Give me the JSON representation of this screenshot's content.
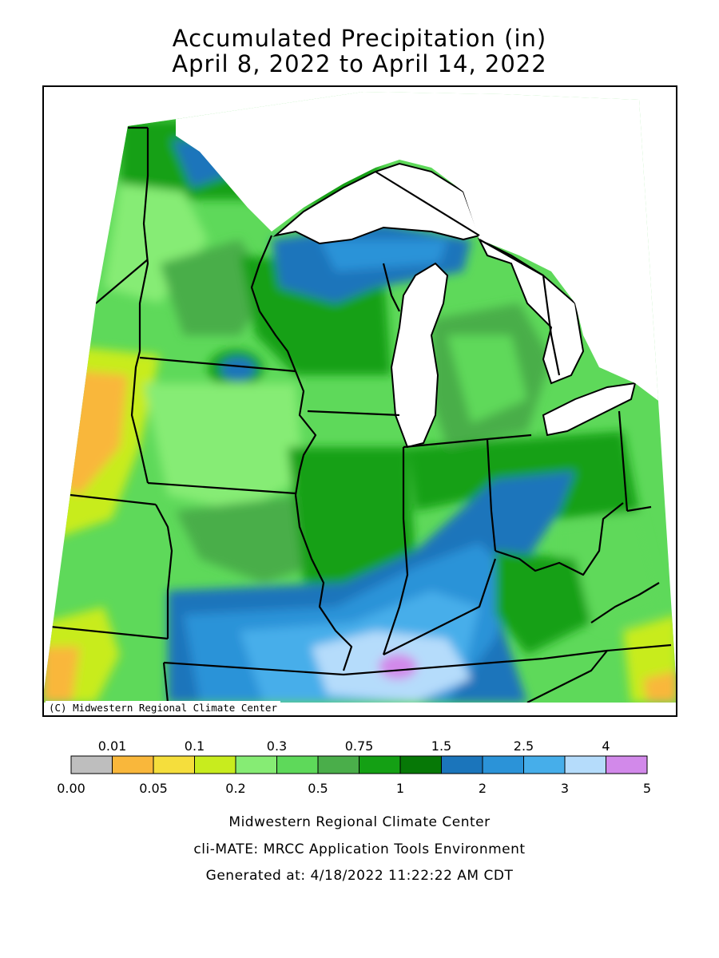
{
  "title_line1": "Accumulated Precipitation (in)",
  "title_line2": "April 8, 2022 to April 14, 2022",
  "credit": "(C) Midwestern Regional Climate Center",
  "legend": {
    "top_labels": [
      "0.01",
      "0.1",
      "0.3",
      "0.75",
      "1.5",
      "2.5",
      "4"
    ],
    "bottom_labels": [
      "0.00",
      "0.05",
      "0.2",
      "0.5",
      "1",
      "2",
      "3",
      "5"
    ],
    "colors": [
      "#bebebe",
      "#f9b73b",
      "#f5de3c",
      "#c8ec1e",
      "#86ec74",
      "#5ed95a",
      "#4aae4a",
      "#14a014",
      "#067806",
      "#1b75bb",
      "#2b93d8",
      "#46aeea",
      "#b5dcfb",
      "#d289ea"
    ]
  },
  "footer": {
    "line1": "Midwestern Regional Climate Center",
    "line2": "cli-MATE: MRCC Application Tools Environment",
    "line3": "Generated at: 4/18/2022 11:22:22 AM CDT"
  }
}
